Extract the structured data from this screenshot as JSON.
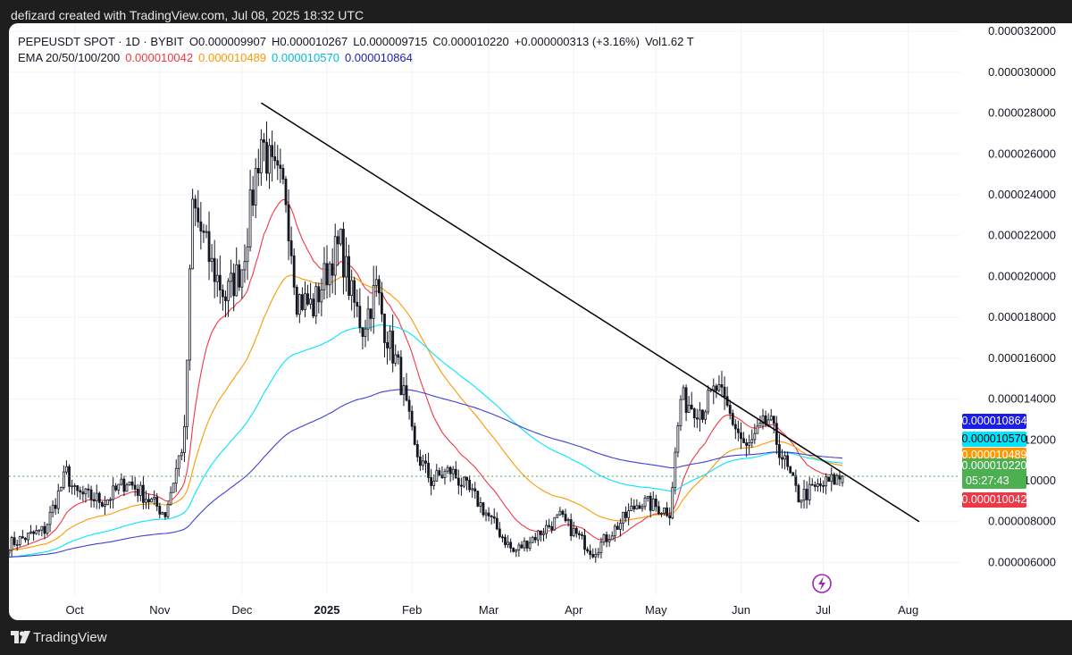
{
  "header": {
    "attribution": "defizard created with TradingView.com, Jul 08, 2025 18:32 UTC"
  },
  "footer": {
    "brand": "TradingView",
    "icon": "tradingview-logo-icon"
  },
  "legend": {
    "symbol": "PEPEUSDT SPOT · 1D · BYBIT",
    "open": "O0.000009907",
    "high": "H0.000010267",
    "low": "L0.000009715",
    "close": "C0.000010220",
    "change": "+0.000000313 (+3.16%)",
    "volume": "Vol1.62 T",
    "ema_label": "EMA 20/50/100/200",
    "ema20": "0.000010042",
    "ema50": "0.000010489",
    "ema100": "0.000010570",
    "ema200": "0.000010864"
  },
  "colors": {
    "up": "#089981",
    "down": "#f23645",
    "ema20": "#f23645",
    "ema50": "#ff9800",
    "ema100": "#00e5ff",
    "ema200": "#3f3fd6",
    "trendline": "#000000",
    "last_price": "#4caf50"
  },
  "price_tags": [
    {
      "value": "0.000010864",
      "color": "#1d1de8",
      "price": 1.0864e-05
    },
    {
      "value": "0.000010570",
      "color": "#00e5ff",
      "text_color": "#000000",
      "price": 1.057e-05
    },
    {
      "value": "0.000010489",
      "color": "#ff9800",
      "price": 1.0489e-05
    },
    {
      "value": "0.000010220",
      "countdown": "05:27:43",
      "color": "#4caf50",
      "price": 1.022e-05
    },
    {
      "value": "0.000010042",
      "color": "#f23645",
      "price": 9.35e-06
    }
  ],
  "chart_data": {
    "type": "candlestick",
    "x_tick_labels": [
      "Oct",
      "Nov",
      "Dec",
      "2025",
      "Feb",
      "Mar",
      "Apr",
      "May",
      "Jun",
      "Jul",
      "Aug"
    ],
    "x_tick_dates": [
      "2024-10-01",
      "2024-11-01",
      "2024-12-01",
      "2025-01-01",
      "2025-02-01",
      "2025-03-01",
      "2025-04-01",
      "2025-05-01",
      "2025-06-01",
      "2025-07-01",
      "2025-08-01"
    ],
    "y_tick_labels": [
      "0.000032000",
      "0.000030000",
      "0.000028000",
      "0.000026000",
      "0.000024000",
      "0.000022000",
      "0.000020000",
      "0.000018000",
      "0.000016000",
      "0.000014000",
      "0.000012000",
      "0.000010000",
      "0.000008000",
      "0.000006000"
    ],
    "y_ticks": [
      3.2e-05,
      3e-05,
      2.8e-05,
      2.6e-05,
      2.4e-05,
      2.2e-05,
      2e-05,
      1.8e-05,
      1.6e-05,
      1.4e-05,
      1.2e-05,
      1e-05,
      8e-06,
      6e-06
    ],
    "y_range": [
      4.4e-06,
      3.24e-05
    ],
    "x_range": [
      "2024-09-07",
      "2025-08-20"
    ],
    "grid": true,
    "close_series": {
      "start_date": "2024-09-07",
      "interval": "1D",
      "anchors": [
        [
          "2024-09-07",
          6.9e-06
        ],
        [
          "2024-09-20",
          7.6e-06
        ],
        [
          "2024-09-28",
          1.04e-05
        ],
        [
          "2024-10-01",
          9.4e-06
        ],
        [
          "2024-10-12",
          9e-06
        ],
        [
          "2024-10-20",
          1e-05
        ],
        [
          "2024-10-27",
          9.2e-06
        ],
        [
          "2024-11-03",
          8.4e-06
        ],
        [
          "2024-11-10",
          1.22e-05
        ],
        [
          "2024-11-13",
          2.35e-05
        ],
        [
          "2024-11-20",
          2.05e-05
        ],
        [
          "2024-11-25",
          1.9e-05
        ],
        [
          "2024-12-01",
          2.05e-05
        ],
        [
          "2024-12-08",
          2.68e-05
        ],
        [
          "2024-12-12",
          2.5e-05
        ],
        [
          "2024-12-17",
          2.4e-05
        ],
        [
          "2024-12-21",
          1.9e-05
        ],
        [
          "2024-12-27",
          1.85e-05
        ],
        [
          "2025-01-03",
          2.1e-05
        ],
        [
          "2025-01-06",
          2.15e-05
        ],
        [
          "2025-01-10",
          1.9e-05
        ],
        [
          "2025-01-14",
          1.75e-05
        ],
        [
          "2025-01-19",
          1.95e-05
        ],
        [
          "2025-01-22",
          1.75e-05
        ],
        [
          "2025-01-27",
          1.55e-05
        ],
        [
          "2025-02-02",
          1.15e-05
        ],
        [
          "2025-02-08",
          1e-05
        ],
        [
          "2025-02-15",
          1.05e-05
        ],
        [
          "2025-02-25",
          9e-06
        ],
        [
          "2025-03-10",
          6.5e-06
        ],
        [
          "2025-03-20",
          7.5e-06
        ],
        [
          "2025-03-27",
          8.2e-06
        ],
        [
          "2025-04-08",
          6.5e-06
        ],
        [
          "2025-04-15",
          7.5e-06
        ],
        [
          "2025-04-25",
          9e-06
        ],
        [
          "2025-05-06",
          8.5e-06
        ],
        [
          "2025-05-10",
          1.4e-05
        ],
        [
          "2025-05-18",
          1.35e-05
        ],
        [
          "2025-05-23",
          1.45e-05
        ],
        [
          "2025-05-27",
          1.35e-05
        ],
        [
          "2025-06-03",
          1.15e-05
        ],
        [
          "2025-06-11",
          1.3e-05
        ],
        [
          "2025-06-18",
          1.05e-05
        ],
        [
          "2025-06-22",
          9.2e-06
        ],
        [
          "2025-07-01",
          9.8e-06
        ],
        [
          "2025-07-08",
          1.02e-05
        ]
      ]
    },
    "ema_lines": [
      {
        "name": "EMA 20",
        "length": 20
      },
      {
        "name": "EMA 50",
        "length": 50
      },
      {
        "name": "EMA 100",
        "length": 100
      },
      {
        "name": "EMA 200",
        "length": 200
      }
    ],
    "trendline": {
      "from": [
        "2024-12-08",
        2.85e-05
      ],
      "to": [
        "2025-08-05",
        8e-06
      ]
    },
    "last_price": 1.022e-05,
    "ohlc_last": {
      "open": 9.907e-06,
      "high": 1.0267e-05,
      "low": 9.715e-06,
      "close": 1.022e-05
    }
  }
}
